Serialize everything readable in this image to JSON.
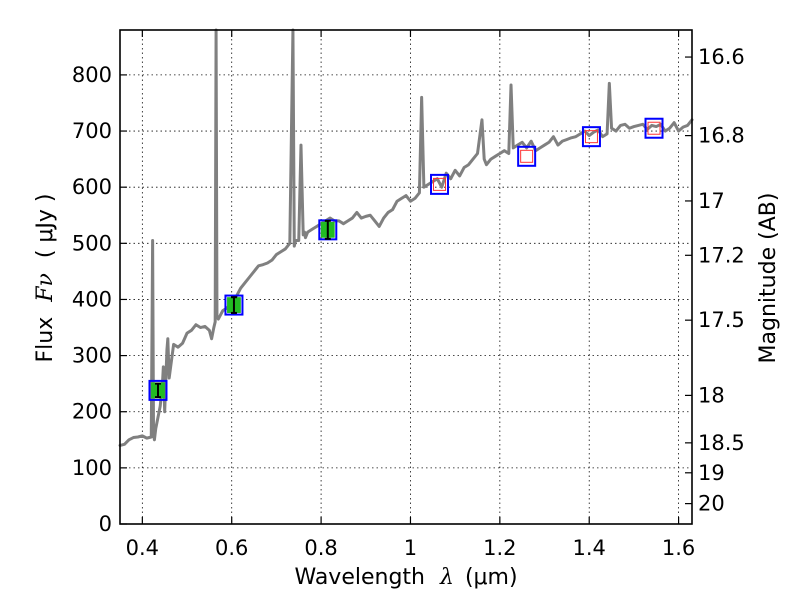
{
  "chart_data": {
    "type": "line",
    "xlabel_prefix": "Wavelength",
    "xlabel_symbol": "λ",
    "xlabel_unit": "(μm)",
    "ylabel_prefix": "Flux",
    "ylabel_symbol": "Fν",
    "ylabel_unit": "( μJy )",
    "y2label": "Magnitude (AB)",
    "xlim": [
      0.35,
      1.63
    ],
    "ylim": [
      0,
      880
    ],
    "xticks": [
      0.4,
      0.6,
      0.8,
      1.0,
      1.2,
      1.4,
      1.6
    ],
    "xtick_labels": [
      "0.4",
      "0.6",
      "0.8",
      "1",
      "1.2",
      "1.4",
      "1.6"
    ],
    "yticks": [
      0,
      100,
      200,
      300,
      400,
      500,
      600,
      700,
      800
    ],
    "ytick_labels": [
      "0",
      "100",
      "200",
      "300",
      "400",
      "500",
      "600",
      "700",
      "800"
    ],
    "y2ticks": [
      {
        "label": "16.6",
        "mag": 16.6
      },
      {
        "label": "16.8",
        "mag": 16.8
      },
      {
        "label": "17",
        "mag": 17.0
      },
      {
        "label": "17.2",
        "mag": 17.2
      },
      {
        "label": "17.5",
        "mag": 17.5
      },
      {
        "label": "18",
        "mag": 18.0
      },
      {
        "label": "18.5",
        "mag": 18.5
      },
      {
        "label": "19",
        "mag": 19.0
      },
      {
        "label": "20",
        "mag": 20.0
      }
    ],
    "grid": true,
    "series": [
      {
        "type": "line",
        "color": "#808080",
        "x": [
          0.35,
          0.36,
          0.37,
          0.38,
          0.39,
          0.4,
          0.41,
          0.42,
          0.423,
          0.425,
          0.427,
          0.43,
          0.44,
          0.445,
          0.447,
          0.45,
          0.455,
          0.457,
          0.46,
          0.47,
          0.48,
          0.49,
          0.5,
          0.51,
          0.52,
          0.53,
          0.54,
          0.55,
          0.555,
          0.56,
          0.563,
          0.565,
          0.567,
          0.57,
          0.58,
          0.59,
          0.6,
          0.61,
          0.62,
          0.63,
          0.64,
          0.65,
          0.66,
          0.67,
          0.68,
          0.69,
          0.7,
          0.71,
          0.72,
          0.73,
          0.737,
          0.74,
          0.743,
          0.75,
          0.755,
          0.76,
          0.763,
          0.765,
          0.77,
          0.78,
          0.79,
          0.8,
          0.81,
          0.82,
          0.83,
          0.84,
          0.85,
          0.86,
          0.87,
          0.88,
          0.89,
          0.9,
          0.91,
          0.92,
          0.93,
          0.94,
          0.95,
          0.96,
          0.97,
          0.98,
          0.99,
          1.0,
          1.01,
          1.02,
          1.025,
          1.03,
          1.04,
          1.05,
          1.06,
          1.07,
          1.08,
          1.09,
          1.1,
          1.11,
          1.12,
          1.13,
          1.14,
          1.15,
          1.16,
          1.165,
          1.17,
          1.18,
          1.19,
          1.2,
          1.21,
          1.22,
          1.225,
          1.23,
          1.24,
          1.25,
          1.26,
          1.27,
          1.28,
          1.29,
          1.3,
          1.31,
          1.32,
          1.33,
          1.34,
          1.35,
          1.36,
          1.37,
          1.38,
          1.39,
          1.4,
          1.41,
          1.42,
          1.43,
          1.44,
          1.445,
          1.45,
          1.46,
          1.47,
          1.48,
          1.49,
          1.5,
          1.51,
          1.52,
          1.53,
          1.54,
          1.55,
          1.56,
          1.57,
          1.58,
          1.59,
          1.6,
          1.61,
          1.62,
          1.63
        ],
        "y": [
          140,
          142,
          150,
          154,
          155,
          157,
          153,
          155,
          505,
          160,
          150,
          170,
          210,
          250,
          280,
          200,
          310,
          330,
          260,
          320,
          315,
          322,
          340,
          345,
          355,
          350,
          352,
          345,
          330,
          350,
          360,
          880,
          370,
          365,
          380,
          385,
          395,
          405,
          420,
          430,
          440,
          450,
          460,
          462,
          465,
          470,
          480,
          485,
          490,
          500,
          880,
          495,
          505,
          505,
          675,
          515,
          520,
          510,
          520,
          525,
          530,
          535,
          540,
          545,
          540,
          540,
          535,
          540,
          545,
          555,
          545,
          548,
          550,
          540,
          530,
          545,
          555,
          560,
          575,
          580,
          585,
          575,
          580,
          590,
          760,
          600,
          605,
          610,
          615,
          600,
          625,
          615,
          630,
          620,
          635,
          640,
          650,
          660,
          720,
          650,
          640,
          650,
          655,
          660,
          665,
          660,
          782,
          670,
          675,
          680,
          670,
          682,
          665,
          670,
          675,
          680,
          690,
          675,
          682,
          685,
          688,
          690,
          695,
          700,
          692,
          698,
          702,
          690,
          695,
          785,
          705,
          700,
          710,
          712,
          705,
          708,
          710,
          712,
          703,
          710,
          708,
          712,
          700,
          705,
          715,
          700,
          707,
          710,
          720
        ]
      },
      {
        "type": "observed_points",
        "marker_fill": "#22bb22",
        "box_color": "#0000ff",
        "x": [
          0.435,
          0.605,
          0.815
        ],
        "y": [
          238,
          390,
          524
        ],
        "err": [
          12,
          14,
          16
        ]
      },
      {
        "type": "model_points",
        "marker_color": "#ff3333",
        "box_color": "#0000ff",
        "x": [
          1.065,
          1.26,
          1.405,
          1.545
        ],
        "y": [
          605,
          655,
          690,
          705
        ]
      }
    ]
  }
}
